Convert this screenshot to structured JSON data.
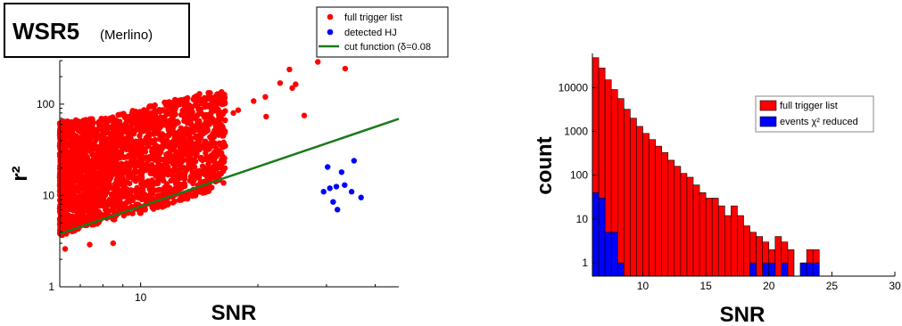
{
  "chart_data": [
    {
      "type": "scatter",
      "title": "WSR5",
      "subtitle": "(Merlino)",
      "xlabel": "SNR",
      "ylabel": "r²",
      "xscale": "log",
      "yscale": "log",
      "xlim": [
        6.2,
        46
      ],
      "ylim": [
        1,
        300
      ],
      "xticks": [
        10
      ],
      "yticks": [
        1,
        10,
        100
      ],
      "yticklabels": [
        "1",
        "10",
        "100"
      ],
      "grid": false,
      "legend_position": "top-right",
      "series": [
        {
          "name": "full trigger list",
          "color": "#ff0000",
          "envelope": {
            "x_range": [
              6.2,
              16.5
            ],
            "lower": [
              [
                6.2,
                3.6
              ],
              [
                7,
                4.3
              ],
              [
                8,
                5.1
              ],
              [
                10,
                6.4
              ],
              [
                12,
                8
              ],
              [
                14,
                10
              ],
              [
                16,
                12
              ]
            ],
            "upper": [
              [
                6.2,
                65
              ],
              [
                7,
                68
              ],
              [
                8,
                72
              ],
              [
                10,
                90
              ],
              [
                12,
                110
              ],
              [
                14,
                130
              ],
              [
                16,
                140
              ]
            ]
          },
          "outliers": [
            [
              16.4,
              110
            ],
            [
              17.3,
              80
            ],
            [
              17.8,
              86
            ],
            [
              19.5,
              108
            ],
            [
              20.9,
              120
            ],
            [
              21.0,
              73
            ],
            [
              22.8,
              170
            ],
            [
              24.5,
              150
            ],
            [
              24.1,
              240
            ],
            [
              25.0,
              165
            ],
            [
              26.3,
              75
            ],
            [
              28.5,
              290
            ],
            [
              33.5,
              245
            ],
            [
              8.5,
              3.0
            ],
            [
              7.4,
              2.9
            ],
            [
              6.4,
              2.6
            ]
          ]
        },
        {
          "name": "detected HJ",
          "color": "#0000ff",
          "points": [
            [
              29.5,
              11
            ],
            [
              30.2,
              20.5
            ],
            [
              30.6,
              12
            ],
            [
              31.2,
              8.5
            ],
            [
              31.8,
              12.5
            ],
            [
              32.0,
              7
            ],
            [
              32.8,
              18
            ],
            [
              33.4,
              13
            ],
            [
              34.8,
              11
            ],
            [
              35.3,
              24
            ],
            [
              36.8,
              9.5
            ]
          ]
        },
        {
          "name": "cut function (δ=0.08",
          "color": "#1a7a1a",
          "type": "line",
          "points": [
            [
              6.2,
              3.8
            ],
            [
              46,
              69
            ]
          ]
        }
      ]
    },
    {
      "type": "bar",
      "xlabel": "SNR",
      "ylabel": "count",
      "xscale": "linear",
      "yscale": "log",
      "xlim": [
        6,
        30
      ],
      "ylim": [
        0.5,
        60000
      ],
      "xticks": [
        10,
        15,
        20,
        25,
        30
      ],
      "xticklabels": [
        "10",
        "15",
        "20",
        "25",
        "30"
      ],
      "yticks": [
        1,
        10,
        100,
        1000,
        10000
      ],
      "yticklabels": [
        "1",
        "10",
        "100",
        "1000",
        "10000"
      ],
      "grid": false,
      "legend_position": "top-right",
      "bin_width": 0.5,
      "bin_starts": [
        6.0,
        6.5,
        7.0,
        7.5,
        8.0,
        8.5,
        9.0,
        9.5,
        10.0,
        10.5,
        11.0,
        11.5,
        12.0,
        12.5,
        13.0,
        13.5,
        14.0,
        14.5,
        15.0,
        15.5,
        16.0,
        16.5,
        17.0,
        17.5,
        18.0,
        18.5,
        19.0,
        19.5,
        20.0,
        20.5,
        21.0,
        21.5,
        22.0,
        22.5,
        23.0,
        23.5
      ],
      "series": [
        {
          "name": "full trigger list",
          "color": "#ff0000",
          "values": [
            48000,
            28000,
            15000,
            9000,
            5600,
            3200,
            2000,
            1300,
            900,
            650,
            460,
            330,
            220,
            160,
            110,
            90,
            60,
            40,
            30,
            30,
            20,
            12,
            20,
            12,
            7,
            5,
            4,
            3,
            2,
            4,
            3,
            2,
            0,
            1,
            2,
            2
          ]
        },
        {
          "name": "events χ² reduced",
          "color": "#0000ff",
          "values": [
            40,
            30,
            5,
            5,
            1,
            0,
            0,
            0,
            0,
            0,
            0,
            0,
            0,
            0,
            0,
            0,
            0,
            0,
            0,
            0,
            0,
            0,
            0,
            0,
            0,
            1,
            0,
            1,
            1,
            0,
            1,
            0,
            0,
            1,
            1,
            1
          ]
        }
      ]
    }
  ]
}
